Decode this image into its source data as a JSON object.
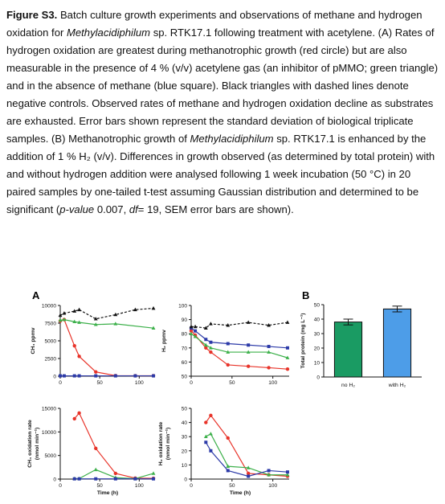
{
  "caption": {
    "label": "Figure S3.",
    "t1": " Batch culture growth experiments and observations of methane and hydrogen oxidation for ",
    "org1": "Methylacidiphilum",
    "t2": " sp. RTK17.1 following treatment with acetylene. (A) Rates of hydrogen oxidation are greatest during methanotrophic growth (red circle) but are also measurable in the presence of 4 % (v/v) acetylene gas (an inhibitor of pMMO; green triangle) and in the absence of methane (blue square). Black triangles with dashed lines denote negative controls. Observed rates of methane and hydrogen oxidation decline as substrates are exhausted. Error bars shown represent the standard deviation of biological triplicate samples. (B) Methanotrophic growth of ",
    "org2": "Methylacidiphilum",
    "t3": " sp. RTK17.1 is enhanced by the addition of 1 % H₂ (v/v). Differences in growth observed (as determined by total protein) with and without hydrogen addition were analysed following 1 week incubation (50 °C) in 20 paired samples by one-tailed t-test assuming Gaussian distribution and determined to be significant (",
    "pval_label": "p-value",
    "t4": " 0.007, ",
    "df_label": "df",
    "t5": "= 19, SEM error bars are shown)."
  },
  "panel_labels": {
    "a": "A",
    "b": "B"
  },
  "colors": {
    "red": "#e8342a",
    "green": "#3cb04a",
    "blue": "#2c3aa8",
    "black": "#111111",
    "barGreen": "#1a9b63",
    "barBlue": "#4d9de8"
  },
  "chart_data": [
    {
      "id": "ch4ppmv",
      "type": "line",
      "ylabel": "CH₄ ppmv",
      "xlabel": "",
      "xlim": [
        0,
        120
      ],
      "ylim": [
        0,
        10000
      ],
      "yticks": [
        "0",
        "2500",
        "5000",
        "7500",
        "10000"
      ],
      "xticks": [
        "0",
        "50",
        "100"
      ],
      "series": [
        {
          "color": "red",
          "marker": "circle",
          "dashed": false,
          "x": [
            0,
            5,
            18,
            24,
            45,
            70,
            95,
            118
          ],
          "y": [
            7800,
            8000,
            4300,
            2800,
            600,
            80,
            60,
            60
          ]
        },
        {
          "color": "green",
          "marker": "triangle",
          "dashed": false,
          "x": [
            0,
            5,
            18,
            24,
            45,
            70,
            118
          ],
          "y": [
            7900,
            8000,
            7700,
            7600,
            7300,
            7400,
            6800
          ]
        },
        {
          "color": "blue",
          "marker": "square",
          "dashed": false,
          "x": [
            0,
            5,
            18,
            24,
            45,
            70,
            95,
            118
          ],
          "y": [
            50,
            50,
            50,
            50,
            50,
            50,
            50,
            50
          ]
        },
        {
          "color": "black",
          "marker": "triangle",
          "dashed": true,
          "x": [
            0,
            5,
            18,
            24,
            45,
            70,
            95,
            118
          ],
          "y": [
            8600,
            8900,
            9200,
            9400,
            8100,
            8700,
            9400,
            9600
          ]
        }
      ]
    },
    {
      "id": "h2ppmv",
      "type": "line",
      "ylabel": "H₂ ppmv",
      "xlabel": "",
      "xlim": [
        0,
        120
      ],
      "ylim": [
        50,
        100
      ],
      "yticks": [
        "50",
        "60",
        "70",
        "80",
        "90",
        "100"
      ],
      "xticks": [
        "0",
        "50",
        "100"
      ],
      "series": [
        {
          "color": "red",
          "marker": "circle",
          "dashed": false,
          "x": [
            0,
            5,
            18,
            24,
            45,
            70,
            95,
            118
          ],
          "y": [
            82,
            79,
            70,
            67,
            58,
            57,
            56,
            55
          ]
        },
        {
          "color": "green",
          "marker": "triangle",
          "dashed": false,
          "x": [
            0,
            5,
            18,
            24,
            45,
            70,
            95,
            118
          ],
          "y": [
            80,
            78,
            72,
            70,
            67,
            67,
            67,
            63
          ]
        },
        {
          "color": "blue",
          "marker": "square",
          "dashed": false,
          "x": [
            0,
            5,
            18,
            24,
            45,
            70,
            95,
            118
          ],
          "y": [
            84,
            82,
            76,
            74,
            73,
            72,
            71,
            70
          ]
        },
        {
          "color": "black",
          "marker": "triangle",
          "dashed": true,
          "x": [
            0,
            5,
            18,
            24,
            45,
            70,
            95,
            118
          ],
          "y": [
            85,
            85,
            84,
            87,
            86,
            88,
            86,
            88
          ]
        }
      ]
    },
    {
      "id": "ch4rate",
      "type": "line",
      "ylabel": "CH₄ oxidation rate",
      "ylabel2": "(nmol min⁻¹)",
      "xlabel": "Time (h)",
      "xlim": [
        0,
        120
      ],
      "ylim": [
        0,
        15000
      ],
      "yticks": [
        "0",
        "5000",
        "10000",
        "15000"
      ],
      "xticks": [
        "0",
        "50",
        "100"
      ],
      "series": [
        {
          "color": "red",
          "marker": "circle",
          "dashed": false,
          "x": [
            18,
            24,
            45,
            70,
            95,
            118
          ],
          "y": [
            12800,
            14000,
            6500,
            1200,
            200,
            150
          ]
        },
        {
          "color": "green",
          "marker": "triangle",
          "dashed": false,
          "x": [
            18,
            24,
            45,
            70,
            95,
            118
          ],
          "y": [
            100,
            100,
            2000,
            300,
            100,
            1200
          ]
        },
        {
          "color": "blue",
          "marker": "square",
          "dashed": false,
          "x": [
            18,
            24,
            45,
            70,
            95,
            118
          ],
          "y": [
            50,
            50,
            50,
            50,
            50,
            50
          ]
        }
      ]
    },
    {
      "id": "h2rate",
      "type": "line",
      "ylabel": "H₂ oxidation rate",
      "ylabel2": "(nmol min⁻¹)",
      "xlabel": "Time (h)",
      "xlim": [
        0,
        120
      ],
      "ylim": [
        0,
        50
      ],
      "yticks": [
        "0",
        "10",
        "20",
        "30",
        "40",
        "50"
      ],
      "xticks": [
        "0",
        "50",
        "100"
      ],
      "series": [
        {
          "color": "red",
          "marker": "circle",
          "dashed": false,
          "x": [
            18,
            24,
            45,
            70,
            95,
            118
          ],
          "y": [
            40,
            45,
            29,
            4,
            3,
            2
          ]
        },
        {
          "color": "green",
          "marker": "triangle",
          "dashed": false,
          "x": [
            18,
            24,
            45,
            70,
            95,
            118
          ],
          "y": [
            30,
            32,
            9,
            8,
            3,
            3
          ]
        },
        {
          "color": "blue",
          "marker": "square",
          "dashed": false,
          "x": [
            18,
            24,
            45,
            70,
            95,
            118
          ],
          "y": [
            26,
            20,
            6,
            2,
            6,
            5
          ]
        }
      ]
    },
    {
      "id": "protein",
      "type": "bar",
      "ylabel": "Total protein (mg L⁻¹)",
      "categories": [
        "no H₂",
        "with H₂"
      ],
      "values": [
        38,
        47
      ],
      "errors": [
        2,
        2
      ],
      "ylim": [
        0,
        50
      ],
      "yticks": [
        "0",
        "10",
        "20",
        "30",
        "40",
        "50"
      ]
    }
  ]
}
